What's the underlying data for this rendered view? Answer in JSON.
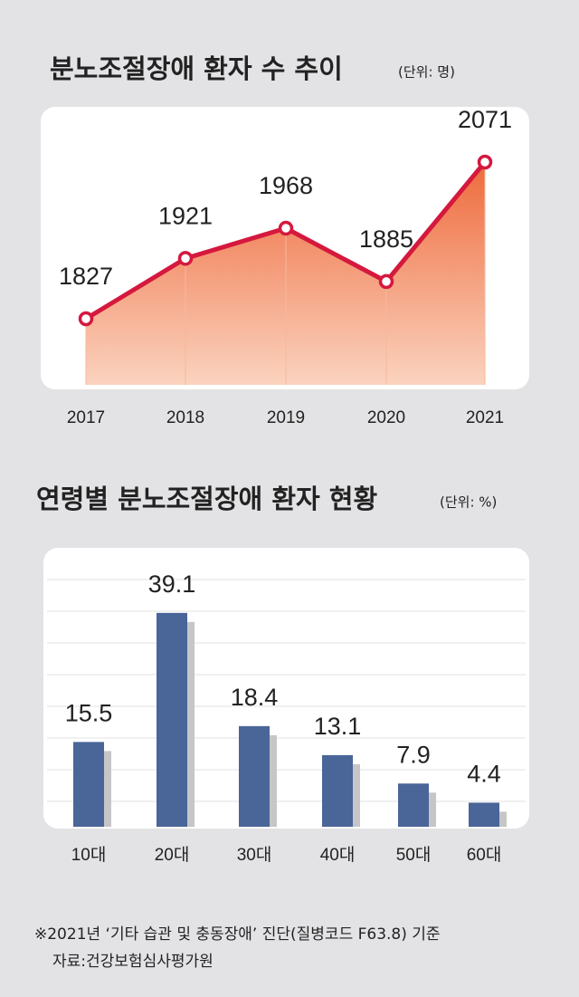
{
  "chart_data": [
    {
      "type": "line",
      "title": "분노조절장애 환자 수 추이",
      "subtitle": "(단위: 명)",
      "categories": [
        "2017",
        "2018",
        "2019",
        "2020",
        "2021"
      ],
      "values": [
        1827,
        1921,
        1968,
        1885,
        2071
      ],
      "color": "#d5183e"
    },
    {
      "type": "bar",
      "title": "연령별 분노조절장애 환자 현황",
      "subtitle": "(단위: %)",
      "categories": [
        "10대",
        "20대",
        "30대",
        "40대",
        "50대",
        "60대"
      ],
      "values": [
        15.5,
        39.1,
        18.4,
        13.1,
        7.9,
        4.4
      ],
      "color": "#4a6598",
      "grid": true
    }
  ],
  "notes": [
    "※2021년 ‘기타 습관 및 충동장애’ 진단(질병코드 F63.8) 기준",
    "자료:건강보험심사평가원"
  ]
}
